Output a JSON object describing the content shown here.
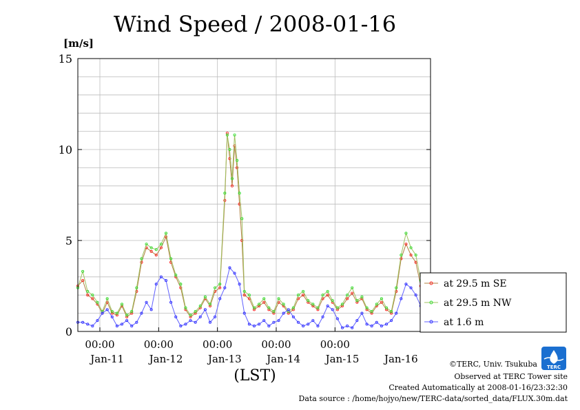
{
  "chart_data": {
    "type": "line",
    "title": "Wind Speed / 2008-01-16",
    "ylabel": "[m/s]",
    "xlabel": "(LST)",
    "ylim": [
      0,
      15
    ],
    "yticks": [
      0,
      5,
      10,
      15
    ],
    "x_unit": "hours since 2008-01-10 15:00 LST",
    "xlim": [
      0,
      144
    ],
    "x_time_labels": [
      {
        "x": 9,
        "label": "00:00"
      },
      {
        "x": 33,
        "label": "00:00"
      },
      {
        "x": 57,
        "label": "00:00"
      },
      {
        "x": 81,
        "label": "00:00"
      },
      {
        "x": 105,
        "label": "00:00"
      }
    ],
    "x_date_labels": [
      {
        "x": 12,
        "label": "Jan-11"
      },
      {
        "x": 36,
        "label": "Jan-12"
      },
      {
        "x": 60,
        "label": "Jan-13"
      },
      {
        "x": 84,
        "label": "Jan-14"
      },
      {
        "x": 108,
        "label": "Jan-15"
      },
      {
        "x": 132,
        "label": "Jan-16"
      }
    ],
    "grid": true,
    "legend_position": "right",
    "series": [
      {
        "name": "at 29.5 m SE",
        "color": "#ff2020",
        "line_color": "#b08040",
        "x": [
          0,
          2,
          4,
          6,
          8,
          10,
          12,
          14,
          16,
          18,
          20,
          22,
          24,
          26,
          28,
          30,
          32,
          34,
          36,
          38,
          40,
          42,
          44,
          46,
          48,
          50,
          52,
          54,
          56,
          58,
          60,
          61,
          62,
          63,
          64,
          65,
          66,
          67,
          68,
          70,
          72,
          74,
          76,
          78,
          80,
          82,
          84,
          86,
          88,
          90,
          92,
          94,
          96,
          98,
          100,
          102,
          104,
          106,
          108,
          110,
          112,
          114,
          116,
          118,
          120,
          122,
          124,
          126,
          128,
          130,
          132,
          134,
          136,
          138,
          140,
          142,
          144
        ],
        "y": [
          2.5,
          2.8,
          2.0,
          1.8,
          1.5,
          1.0,
          1.6,
          1.0,
          0.9,
          1.4,
          0.8,
          1.0,
          2.2,
          3.8,
          4.6,
          4.4,
          4.2,
          4.6,
          5.2,
          3.8,
          3.0,
          2.4,
          1.2,
          0.8,
          1.0,
          1.3,
          1.8,
          1.4,
          2.2,
          2.4,
          7.2,
          10.9,
          9.5,
          8.0,
          10.2,
          9.0,
          7.0,
          5.0,
          2.0,
          1.8,
          1.2,
          1.4,
          1.6,
          1.2,
          1.0,
          1.6,
          1.4,
          1.0,
          1.2,
          1.8,
          2.0,
          1.6,
          1.4,
          1.2,
          1.8,
          2.0,
          1.6,
          1.2,
          1.4,
          1.8,
          2.1,
          1.6,
          1.8,
          1.2,
          1.0,
          1.4,
          1.6,
          1.2,
          1.0,
          2.2,
          4.0,
          4.8,
          4.2,
          3.8,
          2.5,
          1.5,
          2.2
        ]
      },
      {
        "name": "at 29.5 m NW",
        "color": "#30e030",
        "line_color": "#a0c060",
        "x": [
          0,
          2,
          4,
          6,
          8,
          10,
          12,
          14,
          16,
          18,
          20,
          22,
          24,
          26,
          28,
          30,
          32,
          34,
          36,
          38,
          40,
          42,
          44,
          46,
          48,
          50,
          52,
          54,
          56,
          58,
          60,
          61,
          62,
          63,
          64,
          65,
          66,
          67,
          68,
          70,
          72,
          74,
          76,
          78,
          80,
          82,
          84,
          86,
          88,
          90,
          92,
          94,
          96,
          98,
          100,
          102,
          104,
          106,
          108,
          110,
          112,
          114,
          116,
          118,
          120,
          122,
          124,
          126,
          128,
          130,
          132,
          134,
          136,
          138,
          140,
          142,
          144
        ],
        "y": [
          2.4,
          3.3,
          2.2,
          2.0,
          1.6,
          1.1,
          1.8,
          1.1,
          1.0,
          1.5,
          0.9,
          1.1,
          2.4,
          4.0,
          4.8,
          4.6,
          4.5,
          4.8,
          5.4,
          4.0,
          3.1,
          2.6,
          1.3,
          0.9,
          1.1,
          1.4,
          1.9,
          1.5,
          2.4,
          2.6,
          7.6,
          10.8,
          10.0,
          8.4,
          10.8,
          9.4,
          7.6,
          6.2,
          2.2,
          2.0,
          1.3,
          1.5,
          1.8,
          1.3,
          1.1,
          1.8,
          1.5,
          1.1,
          1.3,
          2.0,
          2.2,
          1.7,
          1.5,
          1.3,
          2.0,
          2.2,
          1.7,
          1.3,
          1.5,
          2.0,
          2.4,
          1.7,
          1.9,
          1.3,
          1.1,
          1.5,
          1.8,
          1.3,
          1.1,
          2.4,
          4.2,
          5.4,
          4.6,
          4.2,
          2.8,
          1.6,
          2.4
        ]
      },
      {
        "name": "at 1.6 m",
        "color": "#3030ff",
        "line_color": "#6060ff",
        "x": [
          0,
          2,
          4,
          6,
          8,
          10,
          12,
          14,
          16,
          18,
          20,
          22,
          24,
          26,
          28,
          30,
          32,
          34,
          36,
          38,
          40,
          42,
          44,
          46,
          48,
          50,
          52,
          54,
          56,
          58,
          60,
          62,
          64,
          66,
          68,
          70,
          72,
          74,
          76,
          78,
          80,
          82,
          84,
          86,
          88,
          90,
          92,
          94,
          96,
          98,
          100,
          102,
          104,
          106,
          108,
          110,
          112,
          114,
          116,
          118,
          120,
          122,
          124,
          126,
          128,
          130,
          132,
          134,
          136,
          138,
          140,
          142,
          144
        ],
        "y": [
          0.5,
          0.5,
          0.4,
          0.3,
          0.6,
          1.0,
          1.2,
          0.8,
          0.3,
          0.4,
          0.6,
          0.3,
          0.5,
          1.0,
          1.6,
          1.2,
          2.6,
          3.0,
          2.8,
          1.6,
          0.8,
          0.3,
          0.4,
          0.6,
          0.5,
          0.8,
          1.2,
          0.5,
          0.8,
          1.8,
          2.4,
          3.5,
          3.2,
          2.6,
          1.0,
          0.4,
          0.3,
          0.4,
          0.6,
          0.3,
          0.5,
          0.6,
          1.0,
          1.2,
          0.8,
          0.5,
          0.3,
          0.4,
          0.6,
          0.3,
          0.8,
          1.4,
          1.2,
          0.7,
          0.2,
          0.3,
          0.2,
          0.6,
          1.0,
          0.4,
          0.3,
          0.5,
          0.3,
          0.4,
          0.6,
          1.0,
          1.8,
          2.6,
          2.4,
          2.0,
          1.4,
          0.6,
          0.5
        ]
      }
    ]
  },
  "footer": {
    "copyright": "©TERC, Univ. Tsukuba",
    "observed": "Observed at TERC Tower site",
    "created": "Created Automatically at 2008-01-16/23:32:30",
    "source": "Data source : /home/hojyo/new/TERC-data/sorted_data/FLUX.30m.dat",
    "logo_text": "TERC"
  }
}
